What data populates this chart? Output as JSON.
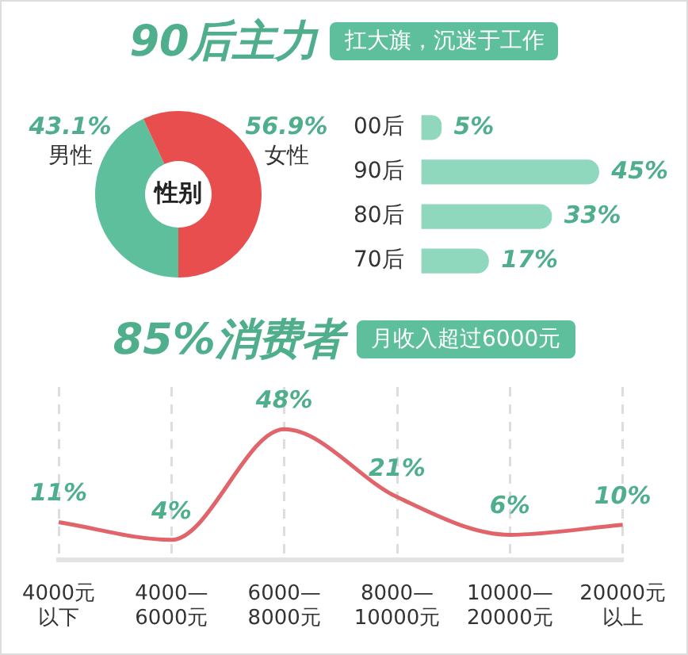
{
  "chart_data": [
    {
      "type": "donut",
      "title": "90后主力",
      "categories": [
        "男性",
        "女性"
      ],
      "values": [
        43.1,
        56.9
      ],
      "value_labels": [
        "43.1%",
        "56.9%"
      ],
      "colors": [
        "#5dbf9b",
        "#e94e4e"
      ],
      "annotations": [
        "性别"
      ],
      "legend": false
    },
    {
      "type": "bar",
      "subtitle": "扛大旗，沉迷于工作",
      "orientation": "horizontal",
      "categories": [
        "00后",
        "90后",
        "80后",
        "70后"
      ],
      "values": [
        5,
        45,
        33,
        17
      ],
      "value_labels": [
        "5%",
        "45%",
        "33%",
        "17%"
      ],
      "color": "#8fd8be",
      "legend": false,
      "tick_labels": "y"
    },
    {
      "type": "line",
      "title": "85%消费者",
      "subtitle": "月收入超过6000元",
      "categories": [
        "4000元以下",
        "4000—\n6000元",
        "6000—\n8000元",
        "8000—\n10000元",
        "10000—\n20000元",
        "20000元以上"
      ],
      "series": [
        {
          "color": "#e06469",
          "values": [
            11,
            4,
            48,
            21,
            6,
            10
          ],
          "value_labels": [
            "11%",
            "4%",
            "48%",
            "21%",
            "6%",
            "10%"
          ]
        }
      ],
      "marker": "none",
      "line_style": "solid",
      "grid": "x",
      "legend": false,
      "tick_labels": "x"
    }
  ]
}
